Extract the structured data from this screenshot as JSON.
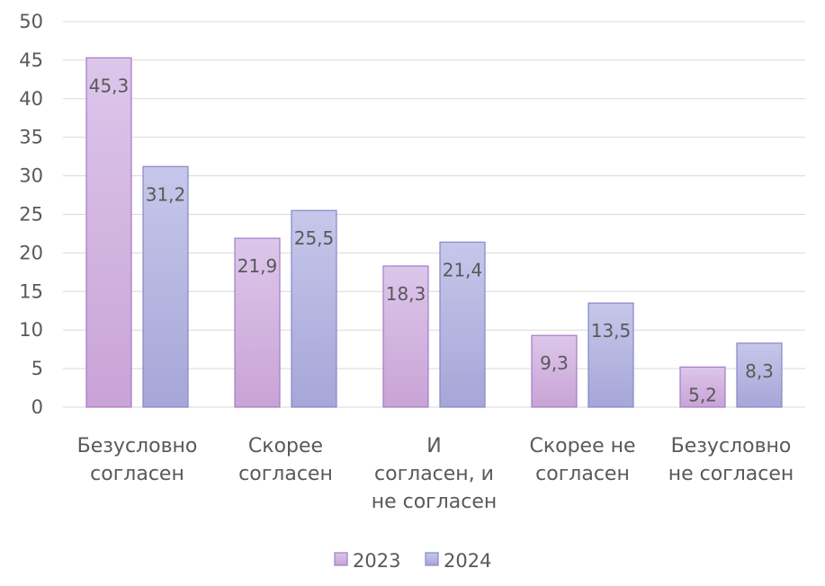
{
  "chart_data": {
    "type": "bar",
    "categories": [
      [
        "Безусловно",
        "согласен"
      ],
      [
        "Скорее",
        "согласен"
      ],
      [
        "И",
        "согласен, и",
        "не согласен"
      ],
      [
        "Скорее не",
        "согласен"
      ],
      [
        "Безусловно",
        "не согласен"
      ]
    ],
    "series": [
      {
        "name": "2023",
        "values": [
          45.3,
          21.9,
          18.3,
          9.3,
          5.2
        ],
        "labels": [
          "45,3",
          "21,9",
          "18,3",
          "9,3",
          "5,2"
        ]
      },
      {
        "name": "2024",
        "values": [
          31.2,
          25.5,
          21.4,
          13.5,
          8.3
        ],
        "labels": [
          "31,2",
          "25,5",
          "21,4",
          "13,5",
          "8,3"
        ]
      }
    ],
    "ylim": [
      0,
      50
    ],
    "yticks": [
      "0",
      "5",
      "10",
      "15",
      "20",
      "25",
      "30",
      "35",
      "40",
      "45",
      "50"
    ],
    "grid": true,
    "legend_position": "bottom",
    "colors": {
      "2023_top": "#dcc6ea",
      "2023_bottom": "#c9a3d6",
      "2024_top": "#c6c7ea",
      "2024_bottom": "#a6a6d8"
    }
  }
}
